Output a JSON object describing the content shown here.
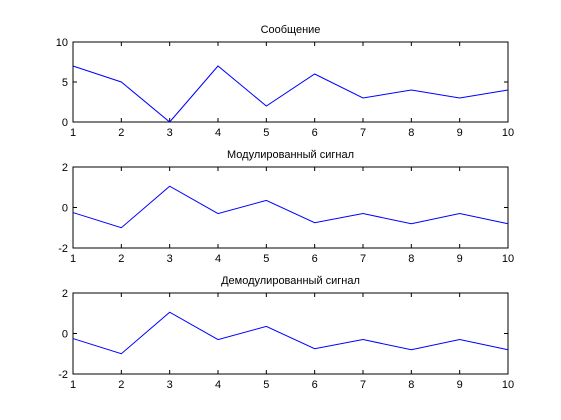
{
  "chart_data": [
    {
      "type": "line",
      "title": "Сообщение",
      "xlabel": "",
      "ylabel": "",
      "x": [
        1,
        2,
        3,
        4,
        5,
        6,
        7,
        8,
        9,
        10
      ],
      "series": [
        {
          "values": [
            7,
            5,
            0,
            7,
            2,
            6,
            3,
            4,
            3,
            4
          ]
        }
      ],
      "xlim": [
        1,
        10
      ],
      "ylim": [
        0,
        10
      ],
      "xticks": [
        1,
        2,
        3,
        4,
        5,
        6,
        7,
        8,
        9,
        10
      ],
      "yticks": [
        0,
        5,
        10
      ],
      "grid": false,
      "line_color": "#0000ff"
    },
    {
      "type": "line",
      "title": "Модулированный сигнал",
      "xlabel": "",
      "ylabel": "",
      "x": [
        1,
        2,
        3,
        4,
        5,
        6,
        7,
        8,
        9,
        10
      ],
      "series": [
        {
          "values": [
            -0.25,
            -1.0,
            1.05,
            -0.3,
            0.35,
            -0.75,
            -0.3,
            -0.8,
            -0.3,
            -0.8
          ]
        }
      ],
      "xlim": [
        1,
        10
      ],
      "ylim": [
        -2,
        2
      ],
      "xticks": [
        1,
        2,
        3,
        4,
        5,
        6,
        7,
        8,
        9,
        10
      ],
      "yticks": [
        -2,
        0,
        2
      ],
      "grid": false,
      "line_color": "#0000ff"
    },
    {
      "type": "line",
      "title": "Демодулированный сигнал",
      "xlabel": "",
      "ylabel": "",
      "x": [
        1,
        2,
        3,
        4,
        5,
        6,
        7,
        8,
        9,
        10
      ],
      "series": [
        {
          "values": [
            -0.25,
            -1.0,
            1.05,
            -0.3,
            0.35,
            -0.75,
            -0.3,
            -0.8,
            -0.3,
            -0.8
          ]
        }
      ],
      "xlim": [
        1,
        10
      ],
      "ylim": [
        -2,
        2
      ],
      "xticks": [
        1,
        2,
        3,
        4,
        5,
        6,
        7,
        8,
        9,
        10
      ],
      "yticks": [
        -2,
        0,
        2
      ],
      "grid": false,
      "line_color": "#0000ff"
    }
  ]
}
